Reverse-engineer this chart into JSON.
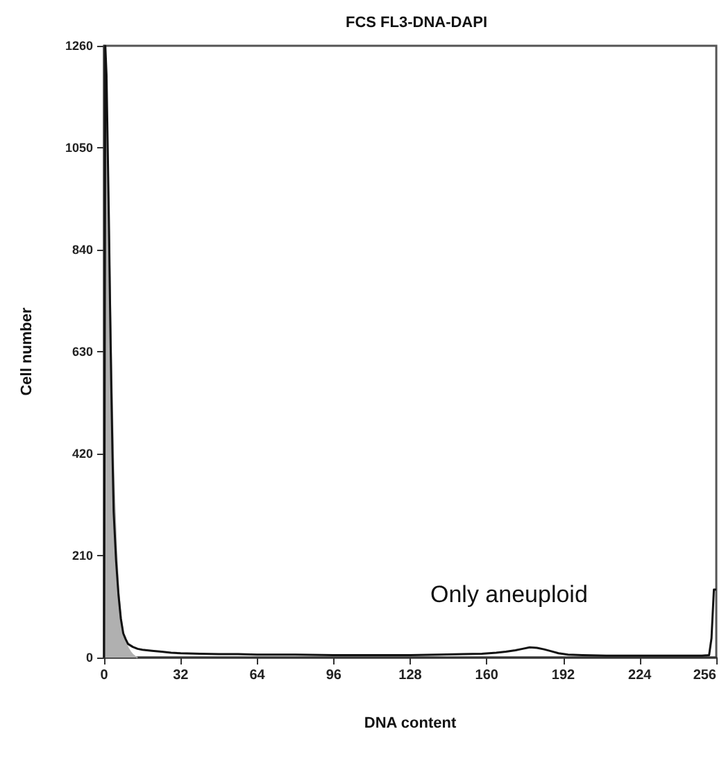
{
  "chart_data": {
    "type": "line",
    "title": "FCS FL3-DNA-DAPI",
    "xlabel": "DNA content",
    "ylabel": "Cell number",
    "annotations": [
      "Only aneuploid"
    ],
    "xlim": [
      0,
      256
    ],
    "ylim": [
      0,
      1260
    ],
    "xticks": [
      0,
      32,
      64,
      96,
      128,
      160,
      192,
      224,
      {
        "value": 256,
        "label": "256"
      }
    ],
    "yticks": [
      0,
      210,
      420,
      630,
      840,
      1050,
      1260
    ],
    "grid": false,
    "marker": "none",
    "line_style": "solid",
    "series": [
      {
        "type": "area",
        "color": "#b0b0b0",
        "x": [
          0,
          1,
          2,
          3,
          4,
          5,
          6,
          7,
          8,
          9,
          10,
          11,
          12,
          13,
          14
        ],
        "values": [
          0,
          1150,
          900,
          620,
          380,
          240,
          140,
          85,
          50,
          32,
          20,
          12,
          6,
          2,
          0
        ]
      },
      {
        "color": "#111111",
        "x": [
          0,
          0.5,
          1,
          1.5,
          2,
          2.5,
          3,
          3.5,
          4,
          5,
          6,
          7,
          8,
          9,
          10,
          12,
          14,
          16,
          18,
          20,
          24,
          28,
          32,
          40,
          48,
          56,
          64,
          80,
          96,
          112,
          128,
          140,
          150,
          158,
          164,
          168,
          172,
          175,
          178,
          181,
          184,
          187,
          190,
          194,
          200,
          210,
          224,
          240,
          250,
          253,
          254,
          255,
          256
        ],
        "values": [
          0,
          1260,
          1200,
          1050,
          900,
          720,
          560,
          420,
          300,
          200,
          130,
          80,
          50,
          38,
          28,
          22,
          18,
          16,
          15,
          14,
          12,
          10,
          9,
          8,
          7,
          7,
          6,
          6,
          5,
          5,
          5,
          6,
          7,
          8,
          10,
          12,
          15,
          18,
          21,
          20,
          17,
          13,
          9,
          6,
          5,
          4,
          4,
          4,
          4,
          5,
          40,
          140,
          140
        ]
      }
    ]
  }
}
